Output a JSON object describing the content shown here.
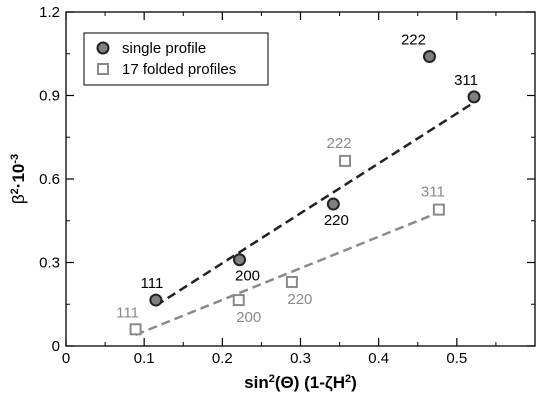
{
  "colors": {
    "single": "#222222",
    "single_fill": "#808080",
    "folded": "#8a8a8a",
    "folded_fill": "#ffffff"
  },
  "chart_data": {
    "type": "scatter",
    "title": "",
    "xlabel": {
      "base": "sin",
      "sup1": "2",
      "arg": "(Θ) (1-ζH",
      "sup2": "2",
      "end": ")"
    },
    "ylabel": {
      "base": "β",
      "sup1": "2",
      "mid": "·10",
      "sup2": "-3"
    },
    "xlim": [
      0,
      0.6
    ],
    "ylim": [
      0,
      1.2
    ],
    "xticks": [
      0,
      0.1,
      0.2,
      0.3,
      0.4,
      0.5
    ],
    "xtick_labels": [
      "0",
      "0.1",
      "0.2",
      "0.3",
      "0.4",
      "0.5"
    ],
    "yticks": [
      0,
      0.3,
      0.6,
      0.9,
      1.2
    ],
    "ytick_labels": [
      "0",
      "0.3",
      "0.6",
      "0.9",
      "1.2"
    ],
    "grid": false,
    "legend_position": "top-left",
    "series": [
      {
        "name": "single profile",
        "marker": "circle",
        "points": [
          {
            "x": 0.115,
            "y": 0.165,
            "label": "111"
          },
          {
            "x": 0.222,
            "y": 0.31,
            "label": "200"
          },
          {
            "x": 0.342,
            "y": 0.51,
            "label": "220"
          },
          {
            "x": 0.465,
            "y": 1.04,
            "label": "222"
          },
          {
            "x": 0.522,
            "y": 0.895,
            "label": "311"
          }
        ],
        "fit": {
          "x": [
            0.115,
            0.522
          ],
          "y": [
            0.145,
            0.875
          ]
        }
      },
      {
        "name": "17 folded profiles",
        "marker": "square",
        "points": [
          {
            "x": 0.089,
            "y": 0.06,
            "label": "111"
          },
          {
            "x": 0.221,
            "y": 0.165,
            "label": "200"
          },
          {
            "x": 0.289,
            "y": 0.23,
            "label": "220"
          },
          {
            "x": 0.357,
            "y": 0.665,
            "label": "222"
          },
          {
            "x": 0.477,
            "y": 0.49,
            "label": "311"
          }
        ],
        "fit": {
          "x": [
            0.089,
            0.477
          ],
          "y": [
            0.04,
            0.48
          ]
        }
      }
    ]
  }
}
